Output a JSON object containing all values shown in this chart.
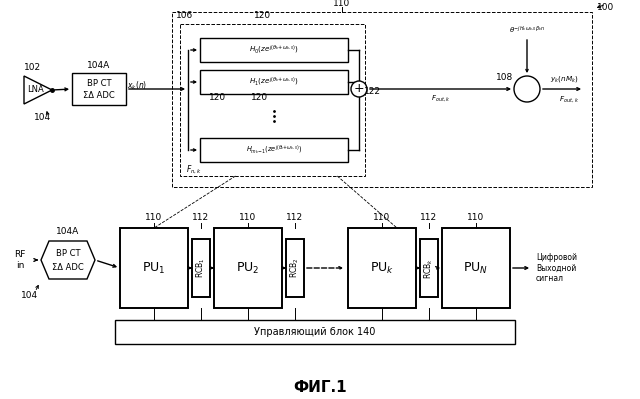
{
  "title": "ФИГ.1",
  "lna_text": "LNA",
  "bp_ct_top": "BP CT\nΣΔ ADC",
  "bp_ct_bot": "BP CT\nΣΔ ADC",
  "label_102": "102",
  "label_104_top": "104",
  "label_104A_top": "104A",
  "label_106": "106",
  "label_120a": "120",
  "label_120b": "120",
  "label_120c": "120",
  "label_122": "122",
  "label_108": "108",
  "label_110_top": "110",
  "label_100": "100",
  "label_110_pu1": "110",
  "label_110_pu2": "110",
  "label_110_puk": "110",
  "label_110_pun": "110",
  "label_112_rcb1": "112",
  "label_112_rcb2": "112",
  "label_112_rcbk": "112",
  "label_104A_bot": "104A",
  "label_104_bot": "104",
  "label_140": "Управляющий блок 140",
  "H0_text": "$H_0(ze^{j(\\theta_k{+}\\omega_{k,0})})$",
  "H1_text": "$H_1(ze^{j(\\theta_k{+}\\omega_{k,0})})$",
  "Hmk_text": "$H_{m_k{-}1}(ze^{j(\\theta_k{+}\\omega_{k,0})})$",
  "exp_text": "$\\theta^{-jH_k\\omega_{k,0}\\beta_k n}$",
  "xs_text": "$x_k(n)$",
  "F_nk": "$F_{n,k}$",
  "F_outk_1": "$F_{out,k}$",
  "yk_text": "$y_k(nM_k)$",
  "F_outk_2": "$F_{out,k}$",
  "RF_in": "RF\nin",
  "digital_out": "Цифровой\nВыходной\nсигнал",
  "PU1": "PU$_1$",
  "PU2": "PU$_2$",
  "PUk": "PU$_k$",
  "PUN": "PU$_N$",
  "RCB1": "RCB$_1$",
  "RCB2": "RCB$_2$",
  "RCBk": "RCB$_k$"
}
